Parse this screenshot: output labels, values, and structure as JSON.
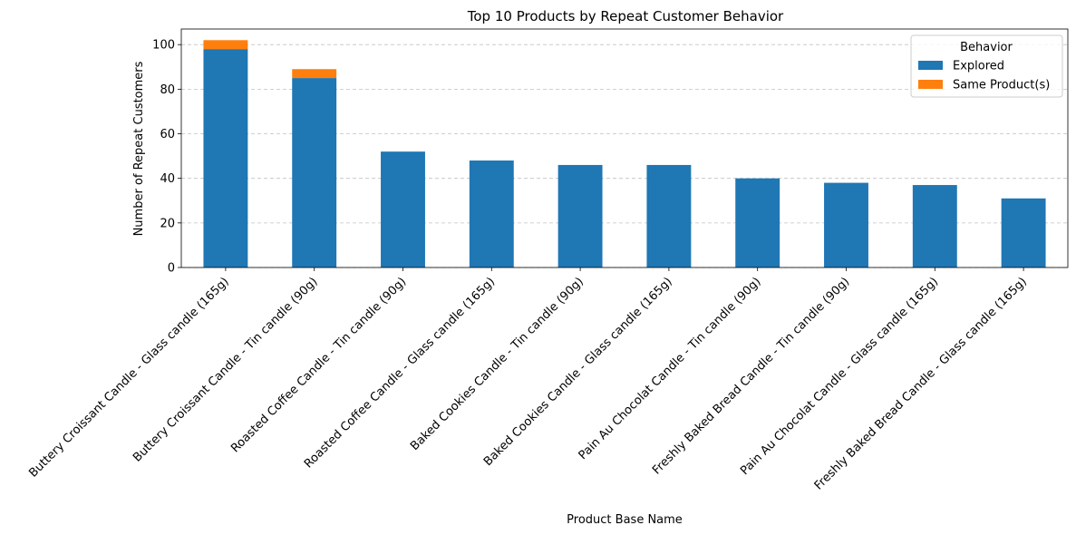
{
  "chart_data": {
    "type": "bar",
    "stacked": true,
    "title": "Top 10 Products by Repeat Customer Behavior",
    "xlabel": "Product Base Name",
    "ylabel": "Number of Repeat Customers",
    "ylim": [
      0,
      107
    ],
    "yticks": [
      0,
      20,
      40,
      60,
      80,
      100
    ],
    "grid": "y, dashed",
    "legend": {
      "title": "Behavior",
      "position": "top-right"
    },
    "categories": [
      "Buttery Croissant Candle - Glass candle (165g)",
      "Buttery Croissant Candle - Tin candle (90g)",
      "Roasted Coffee Candle - Tin candle (90g)",
      "Roasted Coffee Candle - Glass candle (165g)",
      "Baked Cookies Candle - Tin candle (90g)",
      "Baked Cookies Candle - Glass candle (165g)",
      "Pain Au Chocolat Candle - Tin candle (90g)",
      "Freshly Baked Bread Candle - Tin candle (90g)",
      "Pain Au Chocolat Candle - Glass candle (165g)",
      "Freshly Baked Bread Candle - Glass candle (165g)"
    ],
    "series": [
      {
        "name": "Explored",
        "color": "#1f77b4",
        "values": [
          98,
          85,
          52,
          48,
          46,
          46,
          40,
          38,
          37,
          31
        ]
      },
      {
        "name": "Same Product(s)",
        "color": "#ff7f0e",
        "values": [
          4,
          4,
          0,
          0,
          0,
          0,
          0,
          0,
          0,
          0
        ]
      }
    ]
  }
}
